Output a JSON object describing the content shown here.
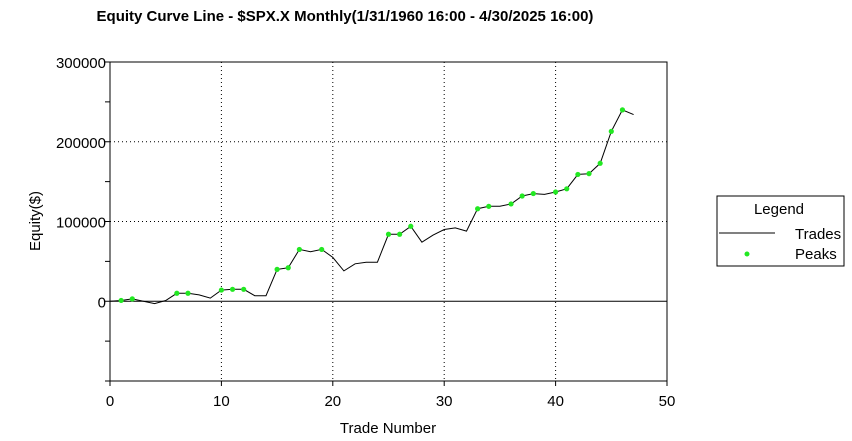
{
  "chart_data": {
    "type": "line",
    "title": "Equity Curve Line - $SPX.X Monthly(1/31/1960 16:00 - 4/30/2025 16:00)",
    "xlabel": "Trade Number",
    "ylabel": "Equity($)",
    "xlim": [
      0,
      50
    ],
    "ylim": [
      -100000,
      300000
    ],
    "x_ticks": [
      0,
      10,
      20,
      30,
      40,
      50
    ],
    "x_tick_labels": [
      "0",
      "10",
      "20",
      "30",
      "40",
      "50"
    ],
    "y_ticks": [
      0,
      100000,
      200000,
      300000
    ],
    "y_tick_labels": [
      "0",
      "100000",
      "200000",
      "300000"
    ],
    "grid": "dotted",
    "legend": {
      "title": "Legend",
      "position": "right",
      "entries": [
        "Trades",
        "Peaks"
      ]
    },
    "series": [
      {
        "name": "Trades",
        "style": "line",
        "color": "#000000",
        "x": [
          0,
          1,
          2,
          3,
          4,
          5,
          6,
          7,
          8,
          9,
          10,
          11,
          12,
          13,
          14,
          15,
          16,
          17,
          18,
          19,
          20,
          21,
          22,
          23,
          24,
          25,
          26,
          27,
          28,
          29,
          30,
          31,
          32,
          33,
          34,
          35,
          36,
          37,
          38,
          39,
          40,
          41,
          42,
          43,
          44,
          45,
          46,
          47
        ],
        "y": [
          0,
          1000,
          3000,
          0,
          -3000,
          1000,
          10000,
          10000,
          8000,
          4000,
          14000,
          15000,
          15000,
          7000,
          7000,
          40000,
          42000,
          65000,
          62000,
          65000,
          55000,
          38000,
          47000,
          49000,
          49000,
          84000,
          84000,
          94000,
          74000,
          83000,
          90000,
          92000,
          88000,
          116000,
          119000,
          119000,
          122000,
          132000,
          135000,
          134000,
          137000,
          141000,
          159000,
          160000,
          173000,
          213000,
          240000,
          234000
        ]
      },
      {
        "name": "Peaks",
        "style": "points",
        "color": "#22e822",
        "x": [
          1,
          2,
          6,
          7,
          10,
          11,
          12,
          15,
          16,
          17,
          19,
          25,
          26,
          27,
          33,
          34,
          36,
          37,
          38,
          40,
          41,
          42,
          43,
          44,
          45,
          46
        ],
        "y": [
          1000,
          3000,
          10000,
          10000,
          14000,
          15000,
          15000,
          40000,
          42000,
          65000,
          65000,
          84000,
          84000,
          94000,
          116000,
          119000,
          122000,
          132000,
          135000,
          137000,
          141000,
          159000,
          160000,
          173000,
          213000,
          240000
        ]
      }
    ]
  }
}
